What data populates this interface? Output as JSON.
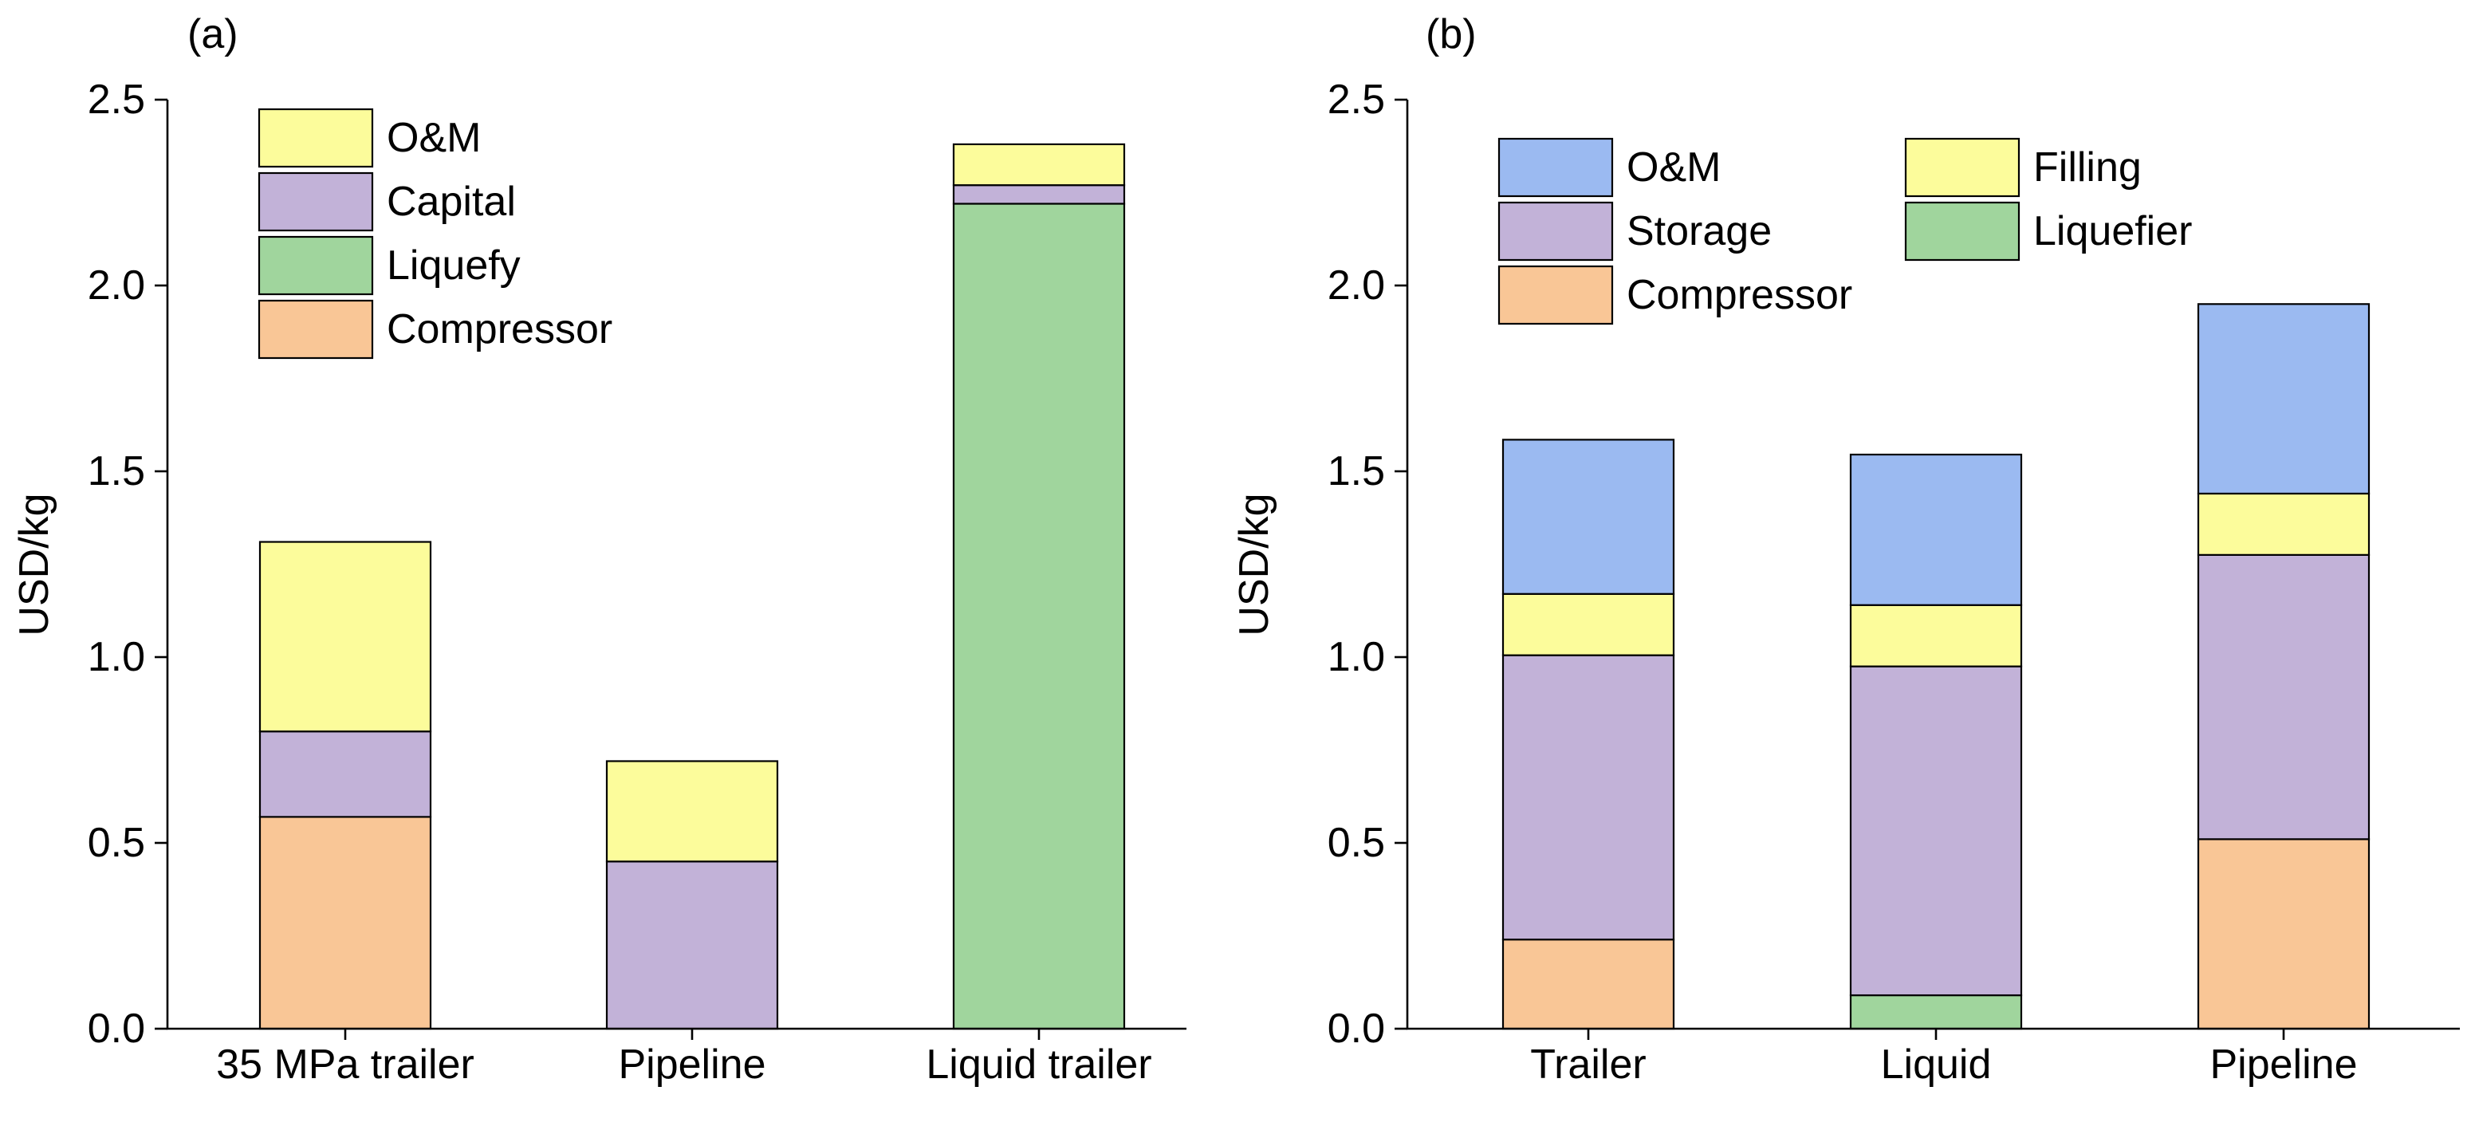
{
  "chart_data": [
    {
      "type": "bar",
      "stacked": true,
      "panel_label": "(a)",
      "title": "",
      "xlabel": "",
      "ylabel": "USD/kg",
      "ylim": [
        0,
        2.5
      ],
      "yticks": [
        "0.0",
        "0.5",
        "1.0",
        "1.5",
        "2.0",
        "2.5"
      ],
      "categories": [
        "35 MPa trailer",
        "Pipeline",
        "Liquid trailer"
      ],
      "series": [
        {
          "name": "Compressor",
          "color": "#F9C696",
          "values": [
            0.57,
            0.0,
            0.0
          ]
        },
        {
          "name": "Liquefy",
          "color": "#A0D59D",
          "values": [
            0.0,
            0.0,
            2.22
          ]
        },
        {
          "name": "Capital",
          "color": "#C2B2D8",
          "values": [
            0.23,
            0.45,
            0.05
          ]
        },
        {
          "name": "O&M",
          "color": "#FCFC9B",
          "values": [
            0.51,
            0.27,
            0.11
          ]
        }
      ],
      "legend": [
        "O&M",
        "Capital",
        "Liquefy",
        "Compressor"
      ],
      "legend_position": "top-left"
    },
    {
      "type": "bar",
      "stacked": true,
      "panel_label": "(b)",
      "title": "",
      "xlabel": "",
      "ylabel": "USD/kg",
      "ylim": [
        0,
        2.5
      ],
      "yticks": [
        "0.0",
        "0.5",
        "1.0",
        "1.5",
        "2.0",
        "2.5"
      ],
      "categories": [
        "Trailer",
        "Liquid",
        "Pipeline"
      ],
      "series": [
        {
          "name": "Compressor",
          "color": "#F9C696",
          "values": [
            0.24,
            0.0,
            0.51
          ]
        },
        {
          "name": "Liquefier",
          "color": "#A0D59D",
          "values": [
            0.0,
            0.09,
            0.0
          ]
        },
        {
          "name": "Storage",
          "color": "#C2B2D8",
          "values": [
            0.765,
            0.885,
            0.765
          ]
        },
        {
          "name": "Filling",
          "color": "#FCFC9B",
          "values": [
            0.165,
            0.165,
            0.165
          ]
        },
        {
          "name": "O&M",
          "color": "#9BBAF1",
          "values": [
            0.415,
            0.405,
            0.51
          ]
        }
      ],
      "legend": [
        "O&M",
        "Filling",
        "Storage",
        "Liquefier",
        "Compressor"
      ],
      "legend_position": "top-left"
    }
  ]
}
